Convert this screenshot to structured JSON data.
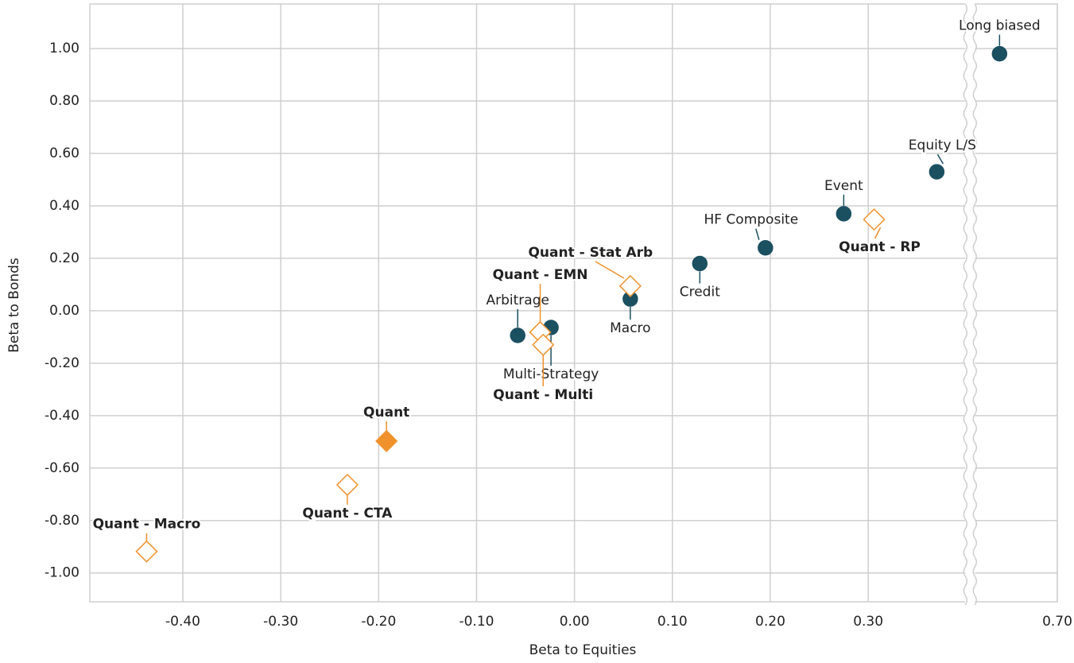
{
  "chart_data": {
    "type": "scatter",
    "x_label": "Beta to Equities",
    "y_label": "Beta to Bonds",
    "xlim": [
      -0.495,
      0.7
    ],
    "x_break": [
      0.4,
      0.615
    ],
    "ylim": [
      -1.11,
      1.17
    ],
    "xticks": [
      {
        "value": -0.4,
        "label": "-0.40"
      },
      {
        "value": -0.3,
        "label": "-0.30"
      },
      {
        "value": -0.2,
        "label": "-0.20"
      },
      {
        "value": -0.1,
        "label": "-0.10"
      },
      {
        "value": 0,
        "label": "0.00"
      },
      {
        "value": 0.1,
        "label": "0.10"
      },
      {
        "value": 0.2,
        "label": "0.20"
      },
      {
        "value": 0.3,
        "label": "0.30"
      },
      {
        "value": 0.7,
        "label": "0.70"
      }
    ],
    "yticks": [
      {
        "value": -1,
        "label": "-1.00"
      },
      {
        "value": -0.8,
        "label": "-0.80"
      },
      {
        "value": -0.6,
        "label": "-0.60"
      },
      {
        "value": -0.4,
        "label": "-0.40"
      },
      {
        "value": -0.2,
        "label": "-0.20"
      },
      {
        "value": 0,
        "label": "0.00"
      },
      {
        "value": 0.2,
        "label": "0.20"
      },
      {
        "value": 0.4,
        "label": "0.40"
      },
      {
        "value": 0.6,
        "label": "0.60"
      },
      {
        "value": 0.8,
        "label": "0.80"
      },
      {
        "value": 1,
        "label": "1.00"
      }
    ],
    "grid": true,
    "series": [
      {
        "color": "#1b5061",
        "marker": "circle",
        "filled": true,
        "label_weight": "normal",
        "labels": [
          "Long biased",
          "Equity L/S",
          "Event",
          "HF Composite",
          "Credit",
          "Macro",
          "Arbitrage",
          "Multi-Strategy"
        ],
        "x": [
          0.641,
          0.37,
          0.275,
          0.195,
          0.128,
          0.057,
          -0.058,
          -0.024
        ],
        "values": [
          0.98,
          0.53,
          0.37,
          0.24,
          0.18,
          0.045,
          -0.094,
          -0.064
        ]
      },
      {
        "color": "#f0922b",
        "marker": "diamond",
        "filled": true,
        "label_weight": "bold",
        "labels": [
          "Quant"
        ],
        "x": [
          -0.192
        ],
        "values": [
          -0.497
        ]
      },
      {
        "color": "#f0922b",
        "marker": "diamond",
        "filled": false,
        "label_weight": "bold",
        "labels": [
          "Quant - RP",
          "Quant - Stat Arb",
          "Quant - EMN",
          "Quant - Multi",
          "Quant - CTA",
          "Quant - Macro"
        ],
        "x": [
          0.306,
          0.057,
          -0.035,
          -0.032,
          -0.232,
          -0.437
        ],
        "values": [
          0.348,
          0.094,
          -0.082,
          -0.13,
          -0.664,
          -0.918
        ]
      }
    ]
  }
}
